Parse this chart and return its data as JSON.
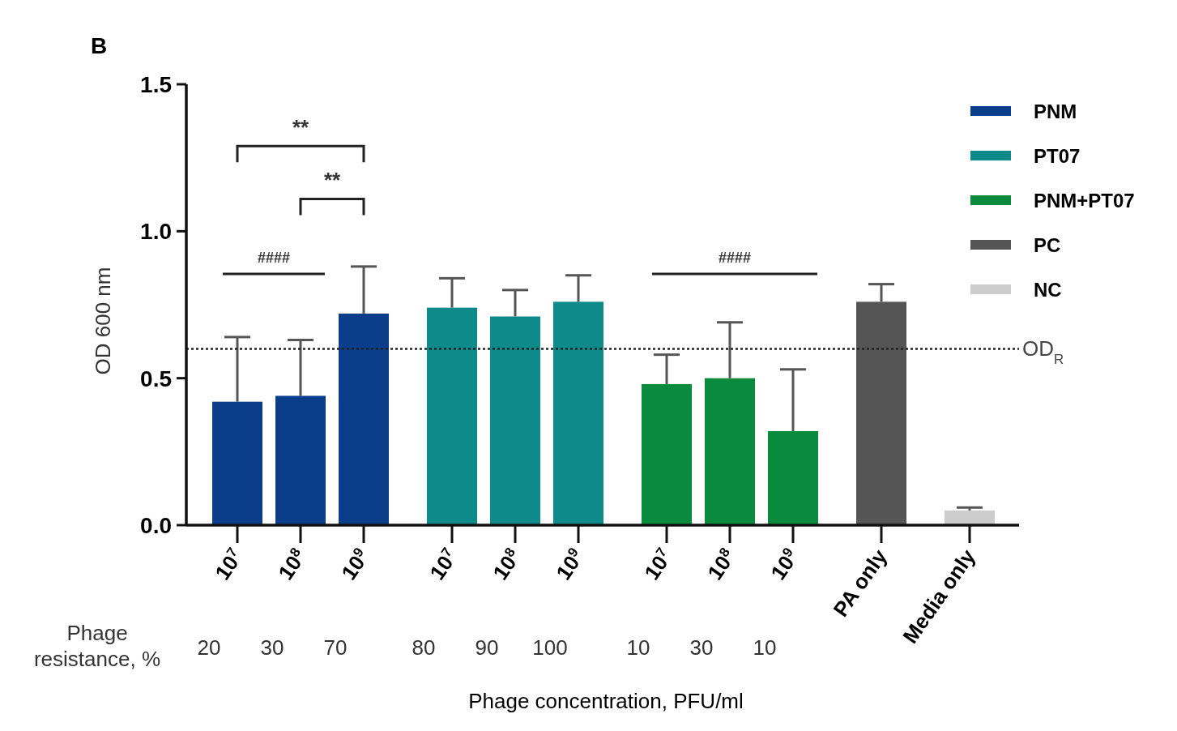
{
  "chart_data": {
    "type": "bar",
    "title": "B",
    "xlabel": "Phage concentration, PFU/ml",
    "ylabel": "OD 600 nm",
    "categories": [
      "10$^{7}$",
      "10$^{8}$",
      "10$^{9}$",
      "10$^{7}$",
      "10$^{8}$",
      "10$^{9}$",
      "10$^{7}$",
      "10$^{8}$",
      "10$^{9}$",
      "PA only",
      "Media only"
    ],
    "series": [
      {
        "name": "PNM",
        "color": "#0a3d8a",
        "values": [
          0.42,
          0.44,
          0.72,
          null,
          null,
          null,
          null,
          null,
          null,
          null,
          null
        ],
        "errors": [
          [
            0.42,
            0.64
          ],
          [
            0.44,
            0.63
          ],
          [
            0.72,
            0.88
          ],
          null,
          null,
          null,
          null,
          null,
          null,
          null,
          null
        ]
      },
      {
        "name": "PT07",
        "color": "#0e8a8a",
        "values": [
          null,
          null,
          null,
          0.74,
          0.71,
          0.76,
          null,
          null,
          null,
          null,
          null
        ],
        "errors": [
          null,
          null,
          null,
          [
            0.74,
            0.84
          ],
          [
            0.71,
            0.8
          ],
          [
            0.76,
            0.85
          ],
          null,
          null,
          null,
          null,
          null
        ]
      },
      {
        "name": "PNM+PT07",
        "color": "#0a8a3c",
        "values": [
          null,
          null,
          null,
          null,
          null,
          null,
          0.48,
          0.5,
          0.32,
          null,
          null
        ],
        "errors": [
          null,
          null,
          null,
          null,
          null,
          null,
          [
            0.48,
            0.58
          ],
          [
            0.5,
            0.69
          ],
          [
            0.32,
            0.53
          ],
          null,
          null
        ]
      },
      {
        "name": "PC",
        "color": "#555555",
        "values": [
          null,
          null,
          null,
          null,
          null,
          null,
          null,
          null,
          null,
          0.76,
          null
        ],
        "errors": [
          null,
          null,
          null,
          null,
          null,
          null,
          null,
          null,
          null,
          [
            0.76,
            0.82
          ],
          null
        ]
      },
      {
        "name": "NC",
        "color": "#cccccc",
        "values": [
          null,
          null,
          null,
          null,
          null,
          null,
          null,
          null,
          null,
          null,
          0.05
        ],
        "errors": [
          null,
          null,
          null,
          null,
          null,
          null,
          null,
          null,
          null,
          null,
          [
            0.05,
            0.06
          ]
        ]
      }
    ],
    "ylim": [
      0,
      1.5
    ],
    "yticks": [
      {
        "value": 0,
        "label": "0.0"
      },
      {
        "value": 0.5,
        "label": "0.5"
      },
      {
        "value": 1,
        "label": "1.0"
      },
      {
        "value": 1.5,
        "label": "1.5"
      }
    ],
    "ref_lines": [
      {
        "axis": "y",
        "value": 0.6,
        "label": "OD$_{R}$",
        "line_style": "dotted"
      }
    ],
    "legend": "top right",
    "annotations": [
      "**",
      "**",
      "####",
      "####",
      "Phage resistance, %",
      "20",
      "30",
      "70",
      "80",
      "90",
      "100",
      "10",
      "30",
      "10"
    ]
  }
}
